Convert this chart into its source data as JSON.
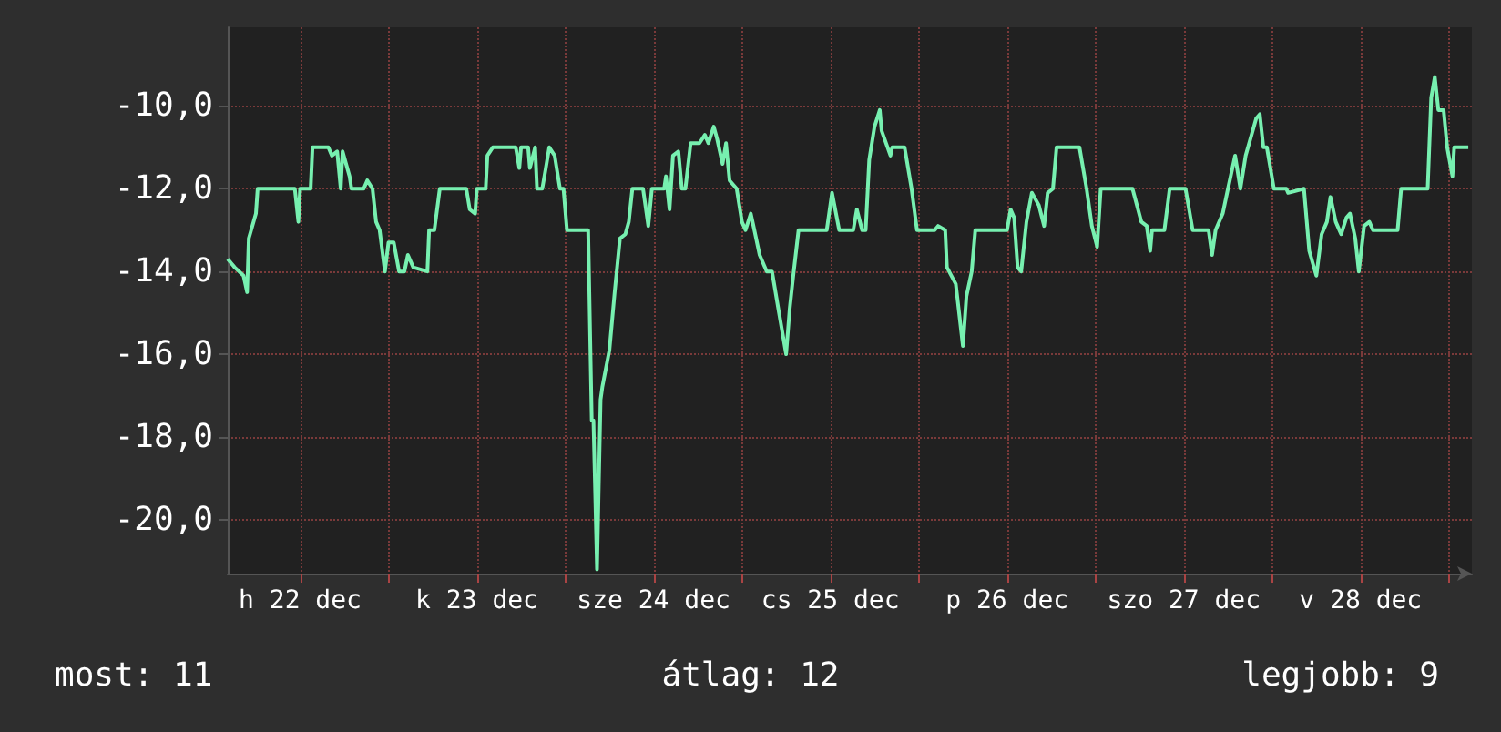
{
  "chart_data": {
    "type": "line",
    "x": [
      "--12-22T02:10",
      "--12-22T03:07",
      "--12-22T04:19",
      "--12-22T04:48",
      "--12-22T05:02",
      "--12-22T06:00",
      "--12-22T06:14",
      "--12-22T11:17",
      "--12-22T11:46",
      "--12-22T12:00",
      "--12-22T13:26",
      "--12-22T13:41",
      "--12-22T15:50",
      "--12-22T16:19",
      "--12-22T17:02",
      "--12-22T17:31",
      "--12-22T17:46",
      "--12-22T18:43",
      "--12-22T18:58",
      "--12-22T20:38",
      "--12-22T21:07",
      "--12-22T21:50",
      "--12-22T22:19",
      "--12-22T22:48",
      "--12-22T23:31",
      "--12-23T00:00",
      "--12-23T00:43",
      "--12-23T01:26",
      "--12-23T02:10",
      "--12-23T02:38",
      "--12-23T03:22",
      "--12-23T05:17",
      "--12-23T05:31",
      "--12-23T06:14",
      "--12-23T06:58",
      "--12-23T10:34",
      "--12-23T11:02",
      "--12-23T11:46",
      "--12-23T12:00",
      "--12-23T13:12",
      "--12-23T13:26",
      "--12-23T14:10",
      "--12-23T17:17",
      "--12-23T17:46",
      "--12-23T18:00",
      "--12-23T18:58",
      "--12-23T19:12",
      "--12-23T19:55",
      "--12-23T20:10",
      "--12-23T20:53",
      "--12-23T21:22",
      "--12-23T21:50",
      "--12-23T22:34",
      "--12-23T23:17",
      "--12-23T23:46",
      "--12-24T00:14",
      "--12-24T03:07",
      "--12-24T03:36",
      "--12-24T03:50",
      "--12-24T04:19",
      "--12-24T04:48",
      "--12-24T05:02",
      "--12-24T06:00",
      "--12-24T06:43",
      "--12-24T07:26",
      "--12-24T08:10",
      "--12-24T08:38",
      "--12-24T09:07",
      "--12-24T10:34",
      "--12-24T11:17",
      "--12-24T11:46",
      "--12-24T13:26",
      "--12-24T13:41",
      "--12-24T14:10",
      "--12-24T14:38",
      "--12-24T15:22",
      "--12-24T15:50",
      "--12-24T16:19",
      "--12-24T17:02",
      "--12-24T18:14",
      "--12-24T18:58",
      "--12-24T19:26",
      "--12-24T20:10",
      "--12-24T20:38",
      "--12-24T21:22",
      "--12-24T21:50",
      "--12-24T22:19",
      "--12-24T23:17",
      "--12-25T00:00",
      "--12-25T00:29",
      "--12-25T01:12",
      "--12-25T01:41",
      "--12-25T02:24",
      "--12-25T03:22",
      "--12-25T04:05",
      "--12-25T05:02",
      "--12-25T06:00",
      "--12-25T06:29",
      "--12-25T06:58",
      "--12-25T07:41",
      "--12-25T11:31",
      "--12-25T12:14",
      "--12-25T13:12",
      "--12-25T15:07",
      "--12-25T15:36",
      "--12-25T16:19",
      "--12-25T16:48",
      "--12-25T17:17",
      "--12-25T18:00",
      "--12-25T18:43",
      "--12-25T18:58",
      "--12-25T20:10",
      "--12-25T20:24",
      "--12-25T22:05",
      "--12-25T23:02",
      "--12-25T23:46",
      "--12-26T02:10",
      "--12-26T02:38",
      "--12-26T03:36",
      "--12-26T03:50",
      "--12-26T05:02",
      "--12-26T06:00",
      "--12-26T06:29",
      "--12-26T07:12",
      "--12-26T07:41",
      "--12-26T12:00",
      "--12-26T12:29",
      "--12-26T12:58",
      "--12-26T13:26",
      "--12-26T13:55",
      "--12-26T14:38",
      "--12-26T15:22",
      "--12-26T16:19",
      "--12-26T17:02",
      "--12-26T17:31",
      "--12-26T18:14",
      "--12-26T18:43",
      "--12-26T21:50",
      "--12-26T22:48",
      "--12-26T23:31",
      "--12-27T00:14",
      "--12-27T00:43",
      "--12-27T05:02",
      "--12-27T06:14",
      "--12-27T06:58",
      "--12-27T07:26",
      "--12-27T07:41",
      "--12-27T09:22",
      "--12-27T10:05",
      "--12-27T12:14",
      "--12-27T13:12",
      "--12-27T15:22",
      "--12-27T15:50",
      "--12-27T16:19",
      "--12-27T17:17",
      "--12-27T18:00",
      "--12-27T18:58",
      "--12-27T19:41",
      "--12-27T20:24",
      "--12-27T21:50",
      "--12-27T22:19",
      "--12-27T22:48",
      "--12-27T23:17",
      "--12-28T00:14",
      "--12-28T01:55",
      "--12-28T02:10",
      "--12-28T04:19",
      "--12-28T05:02",
      "--12-28T06:00",
      "--12-28T06:43",
      "--12-28T07:26",
      "--12-28T07:55",
      "--12-28T08:38",
      "--12-28T09:22",
      "--12-28T10:05",
      "--12-28T10:34",
      "--12-28T11:17",
      "--12-28T11:46",
      "--12-28T12:29",
      "--12-28T13:12",
      "--12-28T13:41",
      "--12-28T17:02",
      "--12-28T17:31",
      "--12-28T21:07",
      "--12-28T21:36",
      "--12-28T22:05",
      "--12-28T22:34",
      "--12-28T23:17",
      "--12-28T23:46",
      "--12-29T00:29",
      "--12-29T00:43",
      "--12-29T02:38"
    ],
    "series": [
      {
        "color": "#77f0b0",
        "values": [
          -13.7,
          -13.9,
          -14.1,
          -14.5,
          -13.2,
          -12.6,
          -12.0,
          -12.0,
          -12.8,
          -12.0,
          -12.0,
          -11.0,
          -11.0,
          -11.2,
          -11.1,
          -12.0,
          -11.1,
          -11.7,
          -12.0,
          -12.0,
          -11.8,
          -12.0,
          -12.8,
          -13.0,
          -14.0,
          -13.3,
          -13.3,
          -14.0,
          -14.0,
          -13.6,
          -13.9,
          -14.0,
          -13.0,
          -13.0,
          -12.0,
          -12.0,
          -12.5,
          -12.6,
          -12.0,
          -12.0,
          -11.2,
          -11.0,
          -11.0,
          -11.5,
          -11.0,
          -11.0,
          -11.5,
          -11.0,
          -12.0,
          -12.0,
          -11.5,
          -11.0,
          -11.2,
          -12.0,
          -12.0,
          -13.0,
          -13.0,
          -17.6,
          -17.6,
          -21.2,
          -17.1,
          -16.8,
          -15.9,
          -14.5,
          -13.2,
          -13.1,
          -12.8,
          -12.0,
          -12.0,
          -12.9,
          -12.0,
          -12.0,
          -11.7,
          -12.5,
          -11.2,
          -11.1,
          -12.0,
          -12.0,
          -10.9,
          -10.9,
          -10.7,
          -10.9,
          -10.5,
          -10.8,
          -11.4,
          -10.9,
          -11.8,
          -12.0,
          -12.8,
          -13.0,
          -12.6,
          -13.0,
          -13.6,
          -14.0,
          -14.0,
          -15.0,
          -16.0,
          -14.9,
          -14.1,
          -13.0,
          -13.0,
          -12.1,
          -13.0,
          -13.0,
          -12.5,
          -13.0,
          -13.0,
          -11.3,
          -10.5,
          -10.1,
          -10.6,
          -11.2,
          -11.0,
          -11.0,
          -12.0,
          -13.0,
          -13.0,
          -12.9,
          -13.0,
          -13.9,
          -14.3,
          -15.8,
          -14.6,
          -14.0,
          -13.0,
          -13.0,
          -12.5,
          -12.7,
          -13.9,
          -14.0,
          -12.8,
          -12.1,
          -12.4,
          -12.9,
          -12.1,
          -12.0,
          -11.0,
          -11.0,
          -12.0,
          -12.9,
          -13.4,
          -12.0,
          -12.0,
          -12.8,
          -12.9,
          -13.5,
          -13.0,
          -13.0,
          -12.0,
          -12.0,
          -13.0,
          -13.0,
          -13.6,
          -13.0,
          -12.6,
          -12.0,
          -11.2,
          -12.0,
          -11.2,
          -10.3,
          -10.2,
          -11.0,
          -11.0,
          -12.0,
          -12.0,
          -12.1,
          -12.0,
          -13.5,
          -14.1,
          -13.1,
          -12.8,
          -12.2,
          -12.8,
          -13.1,
          -12.7,
          -12.6,
          -13.2,
          -14.0,
          -12.9,
          -12.8,
          -13.0,
          -13.0,
          -12.0,
          -12.0,
          -9.8,
          -9.3,
          -10.1,
          -10.1,
          -11.0,
          -11.7,
          -11.0,
          -11.0
        ]
      }
    ],
    "xlim": [
      "--12-22T02:10",
      "--12-29T03:07"
    ],
    "ylim": [
      -21.3,
      -8.1
    ],
    "xticks": [
      {
        "value": "--12-22T12:00",
        "label": "h 22 dec"
      },
      {
        "value": "--12-23",
        "label": null
      },
      {
        "value": "--12-23T12:00",
        "label": "k 23 dec"
      },
      {
        "value": "--12-24",
        "label": null
      },
      {
        "value": "--12-24T12:00",
        "label": "sze 24 dec"
      },
      {
        "value": "--12-25",
        "label": null
      },
      {
        "value": "--12-25T12:00",
        "label": "cs 25 dec"
      },
      {
        "value": "--12-26",
        "label": null
      },
      {
        "value": "--12-26T12:00",
        "label": "p 26 dec"
      },
      {
        "value": "--12-27",
        "label": null
      },
      {
        "value": "--12-27T12:00",
        "label": "szo 27 dec"
      },
      {
        "value": "--12-28",
        "label": null
      },
      {
        "value": "--12-28T12:00",
        "label": "v 28 dec"
      },
      {
        "value": "--12-29",
        "label": null
      }
    ],
    "yticks": [
      {
        "value": -20,
        "label": "-20,0"
      },
      {
        "value": -18,
        "label": "-18,0"
      },
      {
        "value": -16,
        "label": "-16,0"
      },
      {
        "value": -14,
        "label": "-14,0"
      },
      {
        "value": -12,
        "label": "-12,0"
      },
      {
        "value": -10,
        "label": "-10,0"
      }
    ],
    "grid": true,
    "annotations": [
      "most: 11",
      "átlag: 12",
      "legjobb: 9"
    ]
  }
}
